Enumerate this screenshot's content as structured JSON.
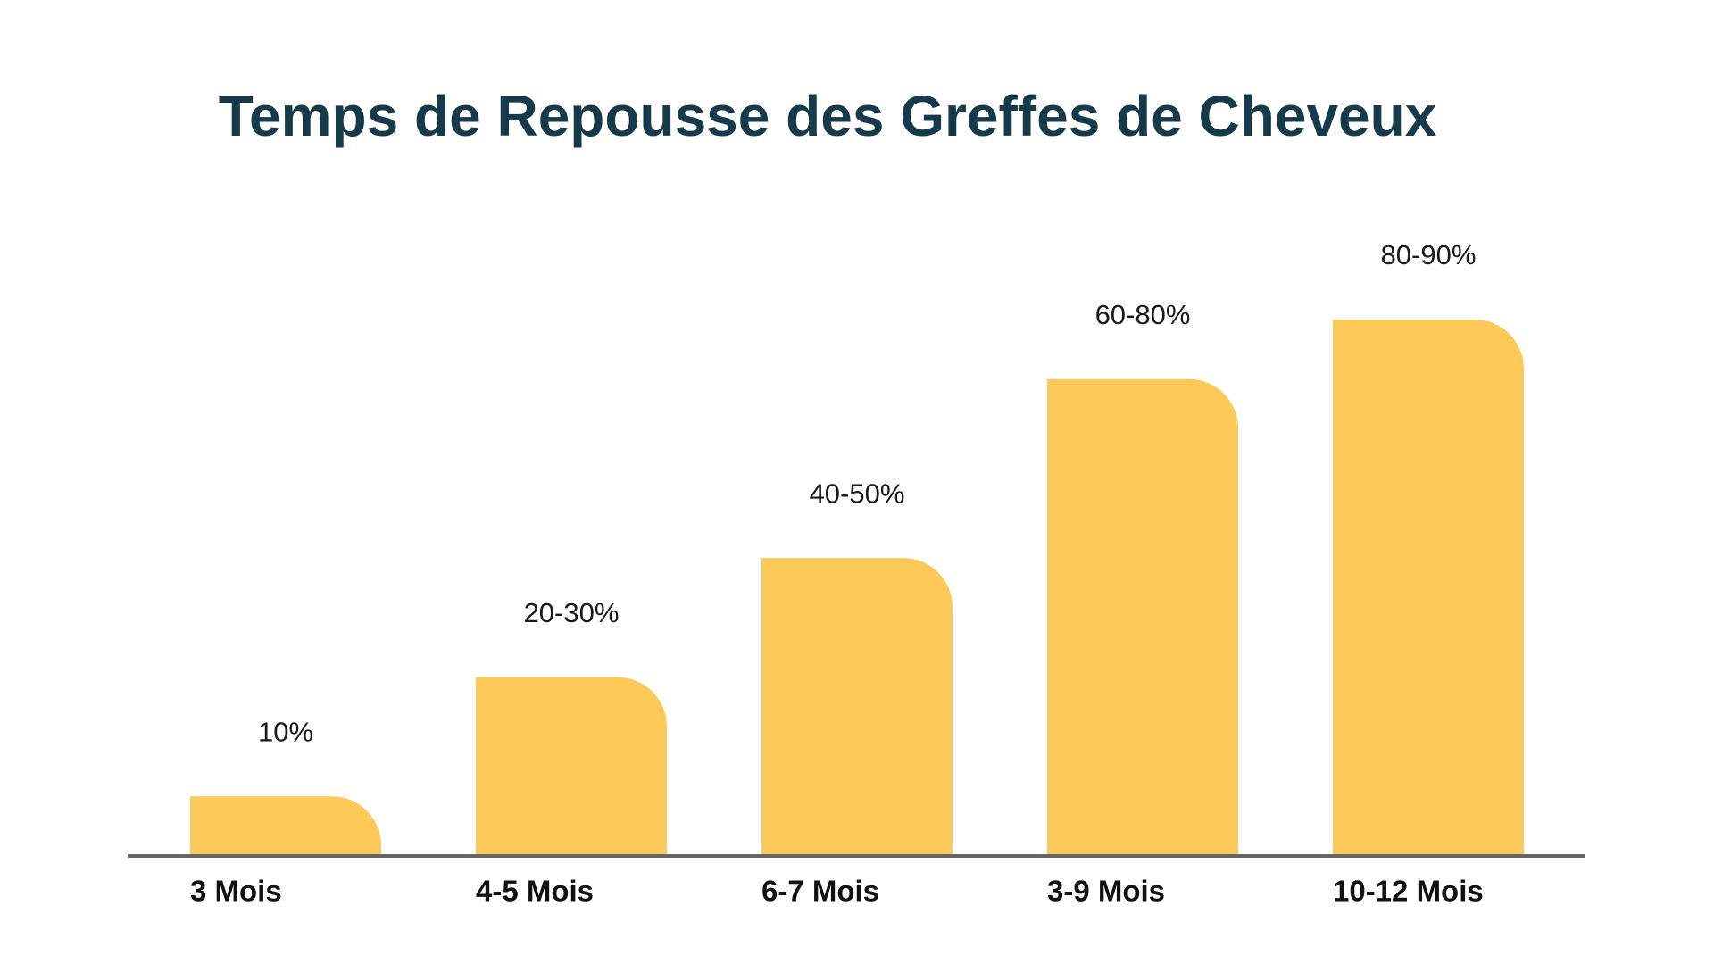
{
  "chart_data": {
    "type": "bar",
    "title": "Temps de Repousse des Greffes de Cheveux",
    "categories": [
      "3 Mois",
      "4-5 Mois",
      "6-7 Mois",
      "3-9 Mois",
      "10-12 Mois"
    ],
    "values": [
      [
        10
      ],
      [
        20,
        30
      ],
      [
        40,
        50
      ],
      [
        60,
        80
      ],
      [
        80,
        90
      ]
    ],
    "value_labels": [
      "10%",
      "20-30%",
      "40-50%",
      "60-80%",
      "80-90%"
    ],
    "color": "#fdca5a"
  }
}
